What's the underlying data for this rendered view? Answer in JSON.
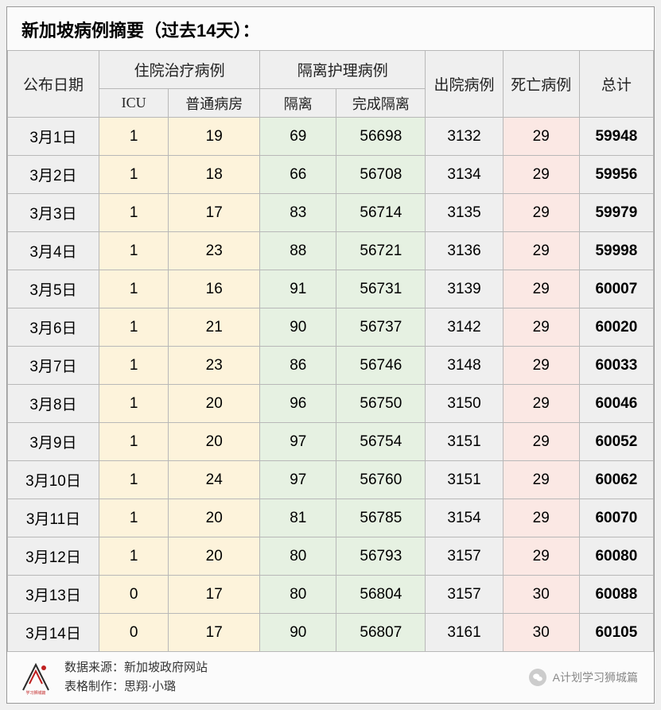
{
  "title": "新加坡病例摘要（过去14天）：",
  "headers": {
    "date": "公布日期",
    "hospitalized": "住院治疗病例",
    "icu": "ICU",
    "ward": "普通病房",
    "isolation_group": "隔离护理病例",
    "isolation": "隔离",
    "isolation_done": "完成隔离",
    "discharged": "出院病例",
    "death": "死亡病例",
    "total": "总计"
  },
  "rows": [
    {
      "date": "3月1日",
      "icu": "1",
      "ward": "19",
      "iso": "69",
      "done": "56698",
      "disch": "3132",
      "death": "29",
      "total": "59948"
    },
    {
      "date": "3月2日",
      "icu": "1",
      "ward": "18",
      "iso": "66",
      "done": "56708",
      "disch": "3134",
      "death": "29",
      "total": "59956"
    },
    {
      "date": "3月3日",
      "icu": "1",
      "ward": "17",
      "iso": "83",
      "done": "56714",
      "disch": "3135",
      "death": "29",
      "total": "59979"
    },
    {
      "date": "3月4日",
      "icu": "1",
      "ward": "23",
      "iso": "88",
      "done": "56721",
      "disch": "3136",
      "death": "29",
      "total": "59998"
    },
    {
      "date": "3月5日",
      "icu": "1",
      "ward": "16",
      "iso": "91",
      "done": "56731",
      "disch": "3139",
      "death": "29",
      "total": "60007"
    },
    {
      "date": "3月6日",
      "icu": "1",
      "ward": "21",
      "iso": "90",
      "done": "56737",
      "disch": "3142",
      "death": "29",
      "total": "60020"
    },
    {
      "date": "3月7日",
      "icu": "1",
      "ward": "23",
      "iso": "86",
      "done": "56746",
      "disch": "3148",
      "death": "29",
      "total": "60033"
    },
    {
      "date": "3月8日",
      "icu": "1",
      "ward": "20",
      "iso": "96",
      "done": "56750",
      "disch": "3150",
      "death": "29",
      "total": "60046"
    },
    {
      "date": "3月9日",
      "icu": "1",
      "ward": "20",
      "iso": "97",
      "done": "56754",
      "disch": "3151",
      "death": "29",
      "total": "60052"
    },
    {
      "date": "3月10日",
      "icu": "1",
      "ward": "24",
      "iso": "97",
      "done": "56760",
      "disch": "3151",
      "death": "29",
      "total": "60062"
    },
    {
      "date": "3月11日",
      "icu": "1",
      "ward": "20",
      "iso": "81",
      "done": "56785",
      "disch": "3154",
      "death": "29",
      "total": "60070"
    },
    {
      "date": "3月12日",
      "icu": "1",
      "ward": "20",
      "iso": "80",
      "done": "56793",
      "disch": "3157",
      "death": "29",
      "total": "60080"
    },
    {
      "date": "3月13日",
      "icu": "0",
      "ward": "17",
      "iso": "80",
      "done": "56804",
      "disch": "3157",
      "death": "30",
      "total": "60088"
    },
    {
      "date": "3月14日",
      "icu": "0",
      "ward": "17",
      "iso": "90",
      "done": "56807",
      "disch": "3161",
      "death": "30",
      "total": "60105"
    }
  ],
  "footer": {
    "source_label": "数据来源：",
    "source_value": "新加坡政府网站",
    "maker_label": "表格制作：",
    "maker_value": "思翔·小璐",
    "channel": "A计划学习狮城篇"
  },
  "colors": {
    "header_bg": "#efefef",
    "yellow_bg": "#fdf3db",
    "green_bg": "#e6f1e2",
    "red_bg": "#fbe8e4",
    "grey_bg": "#efefef",
    "border": "#b8b8b8"
  }
}
